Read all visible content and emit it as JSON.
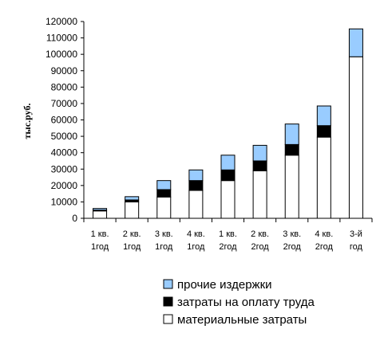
{
  "chart_data": {
    "type": "bar",
    "stacked": true,
    "ylabel": "тыс.руб.",
    "ylim": [
      0,
      120000
    ],
    "yticks": [
      0,
      10000,
      20000,
      30000,
      40000,
      50000,
      60000,
      70000,
      80000,
      90000,
      100000,
      110000,
      120000
    ],
    "categories": [
      [
        "1 кв.",
        "1год"
      ],
      [
        "2 кв.",
        "1год"
      ],
      [
        "3 кв.",
        "1год"
      ],
      [
        "4 кв.",
        "1год"
      ],
      [
        "1 кв.",
        "2год"
      ],
      [
        "2 кв.",
        "2год"
      ],
      [
        "3 кв.",
        "2год"
      ],
      [
        "4 кв.",
        "2год"
      ],
      [
        "3-й",
        "год"
      ]
    ],
    "series": [
      {
        "name": "материальные затраты",
        "color": "#ffffff",
        "values": [
          4500,
          10000,
          13000,
          17000,
          23000,
          29000,
          38500,
          49500,
          98500
        ]
      },
      {
        "name": "затраты на оплату труда",
        "color": "#000000",
        "values": [
          500,
          1200,
          4500,
          6000,
          6500,
          6000,
          6500,
          7000,
          0
        ]
      },
      {
        "name": "прочие издержки",
        "color": "#99ccff",
        "values": [
          1000,
          2000,
          5500,
          6500,
          9000,
          9500,
          12500,
          12000,
          17000
        ]
      }
    ],
    "legend": {
      "position": "bottom",
      "order": [
        "прочие издержки",
        "затраты на оплату труда",
        "материальные затраты"
      ]
    },
    "grid": false
  }
}
